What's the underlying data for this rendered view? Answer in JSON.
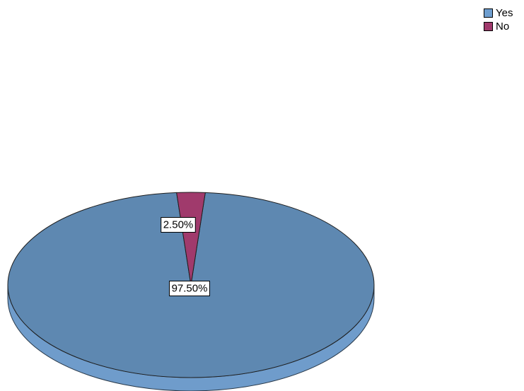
{
  "chart_data": {
    "type": "pie",
    "style": "3d",
    "slices": [
      {
        "label": "Yes",
        "value": 97.5,
        "display": "97.50%",
        "color": "#5e88b1",
        "side_color": "#6f9ccb"
      },
      {
        "label": "No",
        "value": 2.5,
        "display": "2.50%",
        "color": "#a03a6c",
        "side_color": "#8a2f5c"
      }
    ],
    "legend": {
      "position": "top-right",
      "items": [
        {
          "label": "Yes",
          "color": "#6e9ecf"
        },
        {
          "label": "No",
          "color": "#a0396c"
        }
      ]
    }
  }
}
